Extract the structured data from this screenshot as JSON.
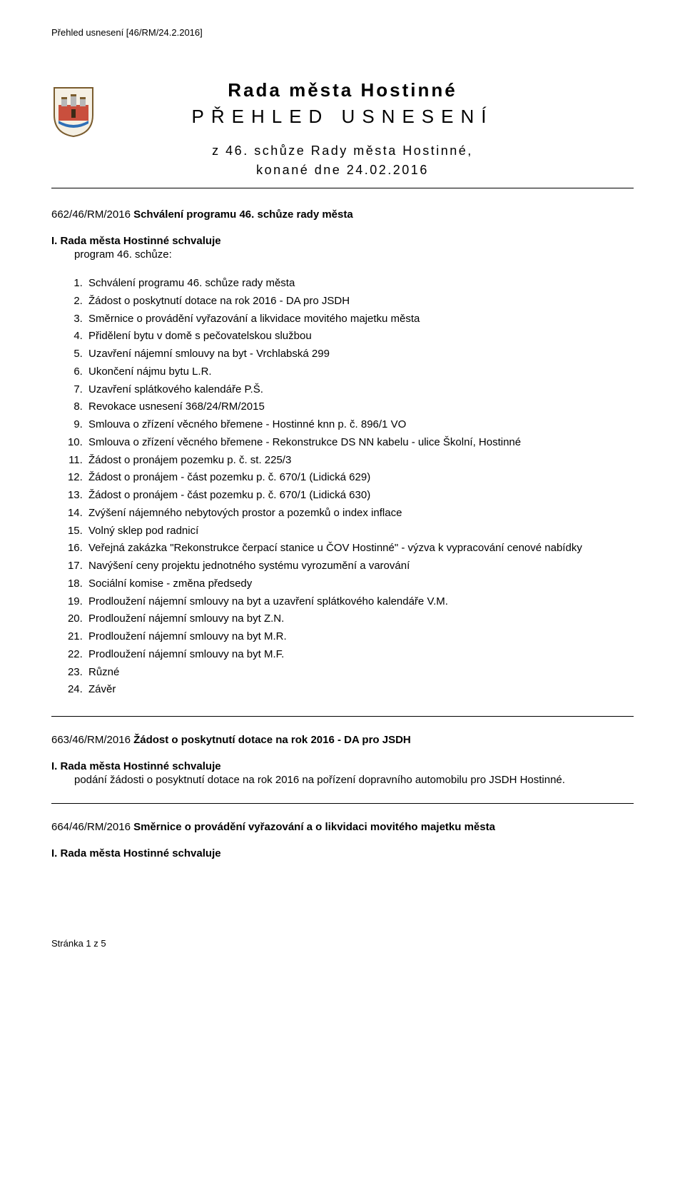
{
  "running_head": "Přehled usnesení [46/RM/24.2.2016]",
  "title": {
    "main": "Rada města Hostinné",
    "sub": "PŘEHLED USNESENÍ",
    "meeting": "z 46. schůze Rady města Hostinné,",
    "date": "konané dne 24.02.2016"
  },
  "res1": {
    "code": "662/46/RM/2016 ",
    "title": "Schválení programu 46. schůze rady města",
    "approve": "I. Rada města Hostinné schvaluje",
    "program_line": "program 46. schůze:"
  },
  "agenda": [
    "Schválení programu 46. schůze rady města",
    "Žádost o poskytnutí dotace na rok 2016 - DA pro JSDH",
    "Směrnice o provádění vyřazování a likvidace movitého majetku města",
    "Přidělení bytu v domě s pečovatelskou službou",
    "Uzavření nájemní smlouvy na byt - Vrchlabská 299",
    "Ukončení nájmu bytu L.R.",
    "Uzavření splátkového kalendáře P.Š.",
    "Revokace usnesení 368/24/RM/2015",
    "Smlouva o zřízení věcného břemene - Hostinné knn p. č. 896/1 VO",
    "Smlouva o zřízení věcného břemene - Rekonstrukce DS NN kabelu - ulice Školní, Hostinné",
    "Žádost o pronájem pozemku p. č. st. 225/3",
    "Žádost o pronájem - část pozemku p. č. 670/1 (Lidická 629)",
    "Žádost o pronájem - část pozemku p. č. 670/1 (Lidická 630)",
    "Zvýšení nájemného nebytových prostor a pozemků o index inflace",
    "Volný sklep pod radnicí",
    "Veřejná zakázka \"Rekonstrukce čerpací stanice u ČOV Hostinné\" - výzva k vypracování cenové nabídky",
    "Navýšení ceny projektu jednotného systému vyrozumění a varování",
    "Sociální komise - změna předsedy",
    "Prodloužení nájemní smlouvy na byt a uzavření splátkového kalendáře V.M.",
    "Prodloužení nájemní smlouvy na byt Z.N.",
    "Prodloužení nájemní smlouvy na byt M.R.",
    "Prodloužení nájemní smlouvy na byt M.F.",
    "Různé",
    "Závěr"
  ],
  "res2": {
    "code": "663/46/RM/2016 ",
    "title": "Žádost o poskytnutí dotace na rok 2016 - DA pro JSDH",
    "approve": "I. Rada města Hostinné schvaluje",
    "body": "podání žádosti o posyktnutí dotace na rok 2016 na pořízení dopravního automobilu pro JSDH Hostinné."
  },
  "res3": {
    "code": "664/46/RM/2016 ",
    "title": "Směrnice o provádění vyřazování a o likvidaci movitého majetku města",
    "approve": "I. Rada města Hostinné schvaluje"
  },
  "footer": "Stránka 1 z 5"
}
